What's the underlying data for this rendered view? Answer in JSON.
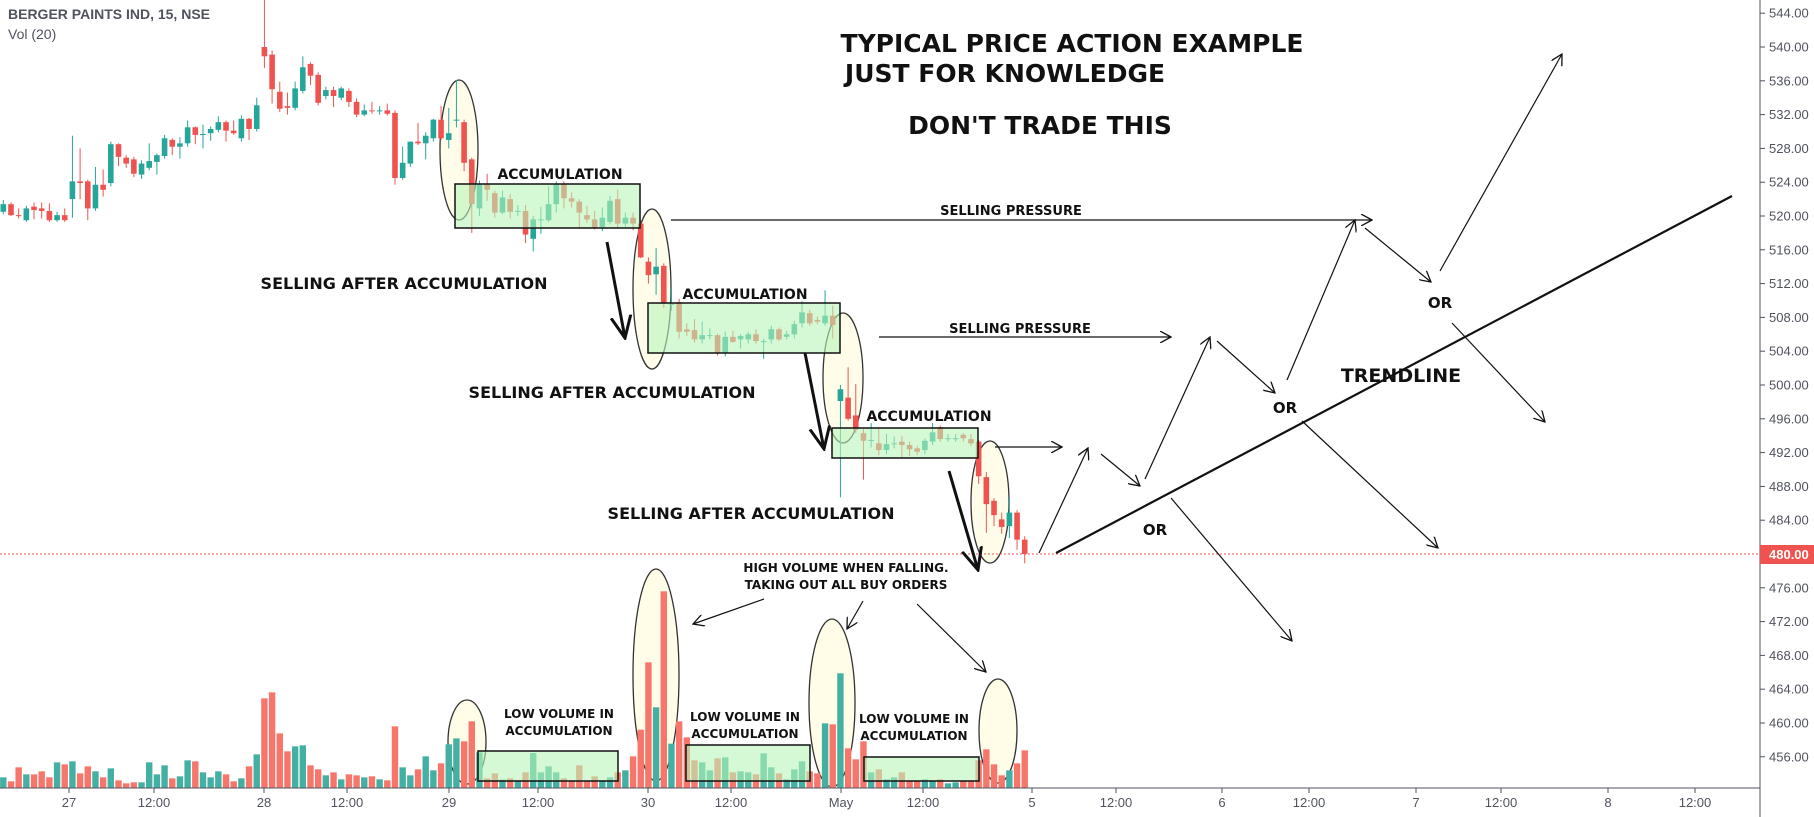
{
  "header": {
    "symbol_title": "BERGER PAINTS IND, 15, NSE",
    "volume_indicator": "Vol (20)"
  },
  "colors": {
    "up": "#26a69a",
    "down": "#ef5350",
    "volume_up": "#44b0a4",
    "volume_down": "#f7766c",
    "box_fill": "#ccffcc",
    "ellipse_fill": "#fffde8",
    "last_price": "#ef5350",
    "axis_text": "#50535e"
  },
  "annotations": {
    "title_line1": "TYPICAL PRICE ACTION EXAMPLE",
    "title_line2": "JUST FOR KNOWLEDGE",
    "title_line3": "DON'T TRADE THIS",
    "accumulation": "ACCUMULATION",
    "selling_after_accumulation": "SELLING AFTER ACCUMULATION",
    "selling_pressure": "SELLING PRESSURE",
    "or": "OR",
    "trendline": "TRENDLINE",
    "high_volume_line1": "HIGH VOLUME WHEN FALLING.",
    "high_volume_line2": "TAKING OUT ALL BUY ORDERS",
    "low_volume_line1": "LOW VOLUME IN",
    "low_volume_line2": "ACCUMULATION"
  },
  "chart_data": {
    "type": "candlestick",
    "title": "BERGER PAINTS IND, 15, NSE",
    "interval": "15",
    "exchange": "NSE",
    "ylim": [
      452,
      546
    ],
    "y_ticks": [
      "456.00",
      "460.00",
      "464.00",
      "468.00",
      "472.00",
      "476.00",
      "480.00",
      "484.00",
      "488.00",
      "492.00",
      "496.00",
      "500.00",
      "504.00",
      "508.00",
      "512.00",
      "516.00",
      "520.00",
      "524.00",
      "528.00",
      "532.00",
      "536.00",
      "540.00",
      "544.00"
    ],
    "x_ticks": [
      "27",
      "12:00",
      "28",
      "12:00",
      "29",
      "12:00",
      "30",
      "12:00",
      "May",
      "12:00",
      "5",
      "12:00",
      "6",
      "12:00",
      "7",
      "12:00",
      "8",
      "12:00"
    ],
    "last_price": "480.00",
    "grid": false,
    "ohlc": [
      [
        520.5,
        521.9,
        520.2,
        521.4
      ],
      [
        521.4,
        521.6,
        520.0,
        520.1
      ],
      [
        520.1,
        520.9,
        519.7,
        520.0
      ],
      [
        519.5,
        521.2,
        519.3,
        520.9
      ],
      [
        521.1,
        521.6,
        519.6,
        520.7
      ],
      [
        520.9,
        521.6,
        519.7,
        520.6
      ],
      [
        520.6,
        521.5,
        519.3,
        519.5
      ],
      [
        519.5,
        520.5,
        519.3,
        520.1
      ],
      [
        520.1,
        520.9,
        519.3,
        519.5
      ],
      [
        522.0,
        529.5,
        519.8,
        524.1
      ],
      [
        524.1,
        528.0,
        522.0,
        523.9
      ],
      [
        524.1,
        524.3,
        519.5,
        520.9
      ],
      [
        520.9,
        525.8,
        520.6,
        523.7
      ],
      [
        523.7,
        525.5,
        522.3,
        523.1
      ],
      [
        523.9,
        528.8,
        523.5,
        528.5
      ],
      [
        528.5,
        528.6,
        525.9,
        527.0
      ],
      [
        526.9,
        527.2,
        525.7,
        526.2
      ],
      [
        526.7,
        527.0,
        524.6,
        525.0
      ],
      [
        524.9,
        526.6,
        524.4,
        526.2
      ],
      [
        525.7,
        528.6,
        525.4,
        526.5
      ],
      [
        526.4,
        527.4,
        524.9,
        527.2
      ],
      [
        527.1,
        529.6,
        526.8,
        529.2
      ],
      [
        529.0,
        529.2,
        527.2,
        528.2
      ],
      [
        528.2,
        529.3,
        526.8,
        528.6
      ],
      [
        528.6,
        531.3,
        528.2,
        530.5
      ],
      [
        530.5,
        530.6,
        528.5,
        529.6
      ],
      [
        529.7,
        530.8,
        528.0,
        529.7
      ],
      [
        529.8,
        530.6,
        528.9,
        530.3
      ],
      [
        530.2,
        531.8,
        529.9,
        531.1
      ],
      [
        531.1,
        531.3,
        528.8,
        530.1
      ],
      [
        530.1,
        531.3,
        529.6,
        529.8
      ],
      [
        529.2,
        531.9,
        528.8,
        531.5
      ],
      [
        531.5,
        531.6,
        529.0,
        530.3
      ],
      [
        530.3,
        534.0,
        530.0,
        533.1
      ],
      [
        540.0,
        545.6,
        537.5,
        538.9
      ],
      [
        539.1,
        539.6,
        533.3,
        535.0
      ],
      [
        534.7,
        535.9,
        532.3,
        532.7
      ],
      [
        533.0,
        534.6,
        532.0,
        532.8
      ],
      [
        532.8,
        535.9,
        532.5,
        535.1
      ],
      [
        534.8,
        538.9,
        534.5,
        537.6
      ],
      [
        538.0,
        538.2,
        535.5,
        536.6
      ],
      [
        536.7,
        537.0,
        533.1,
        533.4
      ],
      [
        534.2,
        535.3,
        533.8,
        534.9
      ],
      [
        534.9,
        535.3,
        532.9,
        534.2
      ],
      [
        534.0,
        535.3,
        533.7,
        535.1
      ],
      [
        534.8,
        535.1,
        532.9,
        533.5
      ],
      [
        533.5,
        533.9,
        531.7,
        532.0
      ],
      [
        532.0,
        533.2,
        531.8,
        532.5
      ],
      [
        532.5,
        533.5,
        532.1,
        532.4
      ],
      [
        532.4,
        533.0,
        532.0,
        532.5
      ],
      [
        532.5,
        533.3,
        531.9,
        532.1
      ],
      [
        532.2,
        532.5,
        523.7,
        524.5
      ],
      [
        524.5,
        528.2,
        524.3,
        526.3
      ],
      [
        526.2,
        528.8,
        525.8,
        528.8
      ],
      [
        528.8,
        531.0,
        528.4,
        528.6
      ],
      [
        528.6,
        529.9,
        526.7,
        529.5
      ],
      [
        529.2,
        531.5,
        528.8,
        531.4
      ],
      [
        531.4,
        533.0,
        529.0,
        529.2
      ],
      [
        529.0,
        532.8,
        528.0,
        529.8
      ],
      [
        531.3,
        536.1,
        530.5,
        531.4
      ],
      [
        531.1,
        531.4,
        525.3,
        526.3
      ],
      [
        526.7,
        526.9,
        518.0,
        521.4
      ],
      [
        520.9,
        524.2,
        520.0,
        523.8
      ],
      [
        523.8,
        525.0,
        521.8,
        523.1
      ],
      [
        522.7,
        523.0,
        519.8,
        520.4
      ],
      [
        520.4,
        523.0,
        520.2,
        522.2
      ],
      [
        522.0,
        522.6,
        519.7,
        520.5
      ],
      [
        520.6,
        521.3,
        520.0,
        520.6
      ],
      [
        520.6,
        521.3,
        516.8,
        517.8
      ],
      [
        517.3,
        520.0,
        515.8,
        519.6
      ],
      [
        519.6,
        521.1,
        517.9,
        519.6
      ],
      [
        519.5,
        523.5,
        519.3,
        521.4
      ],
      [
        521.4,
        524.1,
        520.4,
        523.8
      ],
      [
        523.8,
        524.1,
        520.9,
        522.1
      ],
      [
        522.1,
        522.8,
        521.0,
        521.7
      ],
      [
        521.7,
        522.0,
        518.6,
        520.4
      ],
      [
        520.1,
        521.2,
        519.2,
        519.6
      ],
      [
        519.6,
        520.6,
        518.4,
        518.6
      ],
      [
        518.7,
        521.0,
        518.2,
        519.8
      ],
      [
        519.3,
        522.4,
        519.0,
        521.8
      ],
      [
        522.0,
        523.1,
        518.6,
        519.1
      ],
      [
        519.1,
        520.4,
        518.7,
        519.8
      ],
      [
        519.8,
        520.4,
        518.3,
        519.1
      ],
      [
        519.1,
        519.5,
        515.0,
        515.1
      ],
      [
        514.6,
        515.1,
        512.0,
        513.0
      ],
      [
        513.1,
        516.2,
        510.7,
        514.0
      ],
      [
        514.1,
        514.4,
        509.1,
        509.6
      ],
      [
        509.6,
        511.5,
        508.8,
        509.6
      ],
      [
        509.8,
        510.2,
        505.5,
        506.3
      ],
      [
        506.6,
        507.3,
        505.8,
        506.3
      ],
      [
        506.5,
        507.8,
        505.0,
        505.4
      ],
      [
        505.4,
        507.5,
        504.9,
        505.9
      ],
      [
        505.9,
        506.7,
        505.4,
        505.9
      ],
      [
        505.9,
        506.1,
        503.5,
        503.8
      ],
      [
        503.8,
        506.3,
        503.4,
        505.7
      ],
      [
        505.7,
        506.4,
        505.0,
        505.1
      ],
      [
        505.4,
        506.0,
        504.3,
        505.8
      ],
      [
        505.4,
        506.3,
        504.9,
        506.0
      ],
      [
        506.0,
        506.6,
        504.9,
        505.2
      ],
      [
        505.2,
        505.5,
        503.1,
        505.2
      ],
      [
        505.4,
        507.0,
        504.9,
        506.6
      ],
      [
        506.6,
        506.8,
        505.2,
        505.4
      ],
      [
        505.7,
        506.4,
        505.4,
        506.0
      ],
      [
        506.0,
        507.6,
        505.5,
        507.2
      ],
      [
        507.3,
        509.9,
        506.8,
        508.6
      ],
      [
        508.5,
        508.9,
        507.0,
        507.3
      ],
      [
        507.7,
        508.1,
        507.2,
        507.5
      ],
      [
        507.3,
        511.2,
        507.0,
        508.2
      ],
      [
        508.2,
        509.4,
        505.5,
        507.1
      ],
      [
        498.1,
        500.0,
        486.7,
        499.5
      ],
      [
        498.5,
        502.1,
        495.8,
        496.0
      ],
      [
        496.4,
        500.1,
        494.3,
        494.7
      ],
      [
        494.3,
        494.8,
        488.8,
        493.4
      ],
      [
        493.5,
        495.5,
        492.6,
        493.5
      ],
      [
        493.1,
        494.8,
        491.7,
        492.3
      ],
      [
        492.3,
        494.2,
        491.8,
        493.0
      ],
      [
        493.1,
        493.9,
        492.5,
        493.1
      ],
      [
        493.3,
        494.0,
        491.4,
        492.9
      ],
      [
        492.9,
        493.3,
        491.6,
        492.4
      ],
      [
        492.5,
        492.8,
        491.7,
        492.1
      ],
      [
        492.3,
        493.7,
        491.8,
        493.4
      ],
      [
        493.3,
        495.5,
        492.9,
        494.4
      ],
      [
        495.0,
        495.2,
        493.3,
        493.6
      ],
      [
        493.7,
        494.2,
        493.3,
        493.7
      ],
      [
        493.7,
        494.2,
        493.3,
        493.7
      ],
      [
        494.1,
        494.3,
        493.3,
        493.7
      ],
      [
        493.6,
        494.2,
        492.8,
        493.1
      ],
      [
        493.3,
        493.5,
        488.3,
        489.2
      ],
      [
        489.1,
        489.7,
        482.5,
        485.9
      ],
      [
        486.3,
        486.6,
        483.3,
        484.6
      ],
      [
        484.1,
        484.9,
        482.4,
        483.2
      ],
      [
        483.3,
        486.7,
        481.9,
        484.9
      ],
      [
        484.9,
        485.2,
        480.5,
        481.7
      ],
      [
        481.7,
        482.1,
        478.9,
        480.0
      ]
    ],
    "volume": [
      32,
      20,
      62,
      41,
      41,
      50,
      32,
      77,
      71,
      80,
      44,
      65,
      50,
      32,
      59,
      23,
      14,
      17,
      17,
      77,
      41,
      68,
      29,
      35,
      83,
      80,
      47,
      32,
      50,
      41,
      20,
      29,
      65,
      101,
      269,
      287,
      164,
      110,
      125,
      128,
      68,
      56,
      38,
      47,
      26,
      41,
      38,
      32,
      35,
      26,
      23,
      185,
      62,
      38,
      56,
      95,
      53,
      74,
      131,
      149,
      140,
      200,
      107,
      29,
      44,
      25,
      29,
      23,
      47,
      105,
      47,
      65,
      47,
      29,
      20,
      68,
      20,
      35,
      23,
      32,
      47,
      53,
      95,
      175,
      377,
      242,
      590,
      133,
      200,
      152,
      83,
      77,
      53,
      89,
      92,
      47,
      50,
      47,
      41,
      104,
      62,
      44,
      26,
      56,
      80,
      50,
      44,
      194,
      191,
      344,
      119,
      86,
      140,
      47,
      56,
      26,
      32,
      47,
      20,
      23,
      26,
      23,
      26,
      14,
      17,
      20,
      23,
      83,
      116,
      71,
      38,
      53,
      74,
      113
    ]
  }
}
